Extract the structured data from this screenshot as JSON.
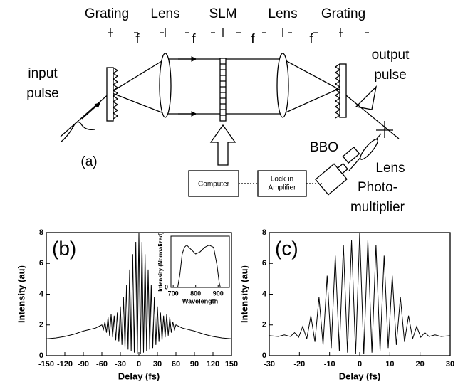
{
  "diagram": {
    "top_labels": [
      "Grating",
      "Lens",
      "SLM",
      "Lens",
      "Grating"
    ],
    "spacing_labels": [
      "f",
      "f",
      "f",
      "f"
    ],
    "input_label": [
      "input",
      "pulse"
    ],
    "output_label": [
      "output",
      "pulse"
    ],
    "panel_label": "(a)",
    "computer": "Computer",
    "lockin": [
      "Lock-in",
      "Amplifier"
    ],
    "bbo": "BBO",
    "lens2": "Lens",
    "detector": [
      "Photo-",
      "multiplier"
    ]
  },
  "chart_data": [
    {
      "type": "line",
      "panel_label": "(b)",
      "xlabel": "Delay (fs)",
      "ylabel": "Intensity (au)",
      "x": [
        -150,
        -135,
        -120,
        -105,
        -90,
        -80,
        -70,
        -60,
        -57.5,
        -55,
        -52.5,
        -50,
        -47.5,
        -45,
        -42.5,
        -40,
        -37.5,
        -35,
        -32.5,
        -30,
        -27.5,
        -25,
        -22.5,
        -20,
        -17.5,
        -15,
        -12.5,
        -10,
        -7.5,
        -5,
        -2.5,
        0,
        2.5,
        5,
        7.5,
        10,
        12.5,
        15,
        17.5,
        20,
        22.5,
        25,
        27.5,
        30,
        32.5,
        35,
        37.5,
        40,
        42.5,
        45,
        47.5,
        50,
        52.5,
        55,
        57.5,
        60,
        70,
        80,
        90,
        105,
        120,
        135,
        150
      ],
      "values": [
        1.1,
        1.15,
        1.25,
        1.4,
        1.6,
        1.7,
        1.8,
        2.0,
        1.7,
        2.2,
        1.5,
        2.5,
        1.3,
        2.7,
        1.2,
        2.6,
        1.0,
        2.8,
        0.9,
        3.2,
        0.7,
        3.8,
        0.5,
        4.6,
        0.4,
        5.6,
        0.3,
        6.6,
        0.2,
        7.4,
        0.1,
        8,
        0.1,
        7.4,
        0.2,
        6.6,
        0.3,
        5.6,
        0.4,
        4.6,
        0.5,
        3.8,
        0.7,
        3.2,
        0.9,
        2.8,
        1.0,
        2.6,
        1.2,
        2.7,
        1.3,
        2.5,
        1.5,
        2.2,
        1.7,
        2.0,
        1.8,
        1.7,
        1.6,
        1.4,
        1.25,
        1.15,
        1.1
      ],
      "color": "#000000",
      "xlim": [
        -150,
        150
      ],
      "xticks": [
        -150,
        -120,
        -90,
        -60,
        -30,
        0,
        30,
        60,
        90,
        120,
        150
      ],
      "ylim": [
        0,
        8
      ],
      "yticks": [
        0,
        2,
        4,
        6,
        8
      ]
    },
    {
      "type": "line",
      "xlabel": "Wavelength",
      "ylabel": "Intensity (Normalized)",
      "x": [
        720,
        730,
        740,
        750,
        760,
        780,
        800,
        820,
        840,
        860,
        880,
        895,
        905,
        910
      ],
      "values": [
        0,
        0.3,
        0.75,
        0.9,
        0.95,
        0.85,
        0.75,
        0.8,
        0.9,
        0.95,
        0.9,
        0.5,
        0.1,
        0
      ],
      "color": "#000000",
      "xlim": [
        690,
        950
      ],
      "xticks": [
        700,
        800,
        900
      ],
      "ylim": [
        0,
        1.15
      ],
      "yticks": [
        0
      ]
    },
    {
      "type": "line",
      "panel_label": "(c)",
      "xlabel": "Delay (fs)",
      "ylabel": "Intensity (au)",
      "x": [
        -30,
        -27,
        -25,
        -23,
        -21.6,
        -20.25,
        -18.9,
        -17.55,
        -16.2,
        -14.85,
        -13.5,
        -12.15,
        -10.8,
        -9.45,
        -8.1,
        -6.75,
        -5.4,
        -4.05,
        -2.7,
        -1.35,
        0,
        1.35,
        2.7,
        4.05,
        5.4,
        6.75,
        8.1,
        9.45,
        10.8,
        12.15,
        13.5,
        14.85,
        16.2,
        17.55,
        18.9,
        20.25,
        21.6,
        23,
        25,
        27,
        30
      ],
      "values": [
        1.3,
        1.25,
        1.35,
        1.25,
        1.5,
        1.2,
        1.9,
        1.1,
        2.6,
        0.9,
        3.8,
        0.7,
        5.2,
        0.5,
        6.5,
        0.3,
        7.2,
        0.2,
        7.5,
        0.1,
        8,
        0.1,
        7.5,
        0.2,
        7.2,
        0.3,
        6.5,
        0.5,
        5.2,
        0.7,
        3.8,
        0.9,
        2.6,
        1.1,
        1.9,
        1.2,
        1.5,
        1.25,
        1.35,
        1.25,
        1.3
      ],
      "color": "#000000",
      "xlim": [
        -30,
        30
      ],
      "xticks": [
        -30,
        -20,
        -10,
        0,
        10,
        20,
        30
      ],
      "ylim": [
        0,
        8
      ],
      "yticks": [
        0,
        2,
        4,
        6,
        8
      ]
    }
  ]
}
